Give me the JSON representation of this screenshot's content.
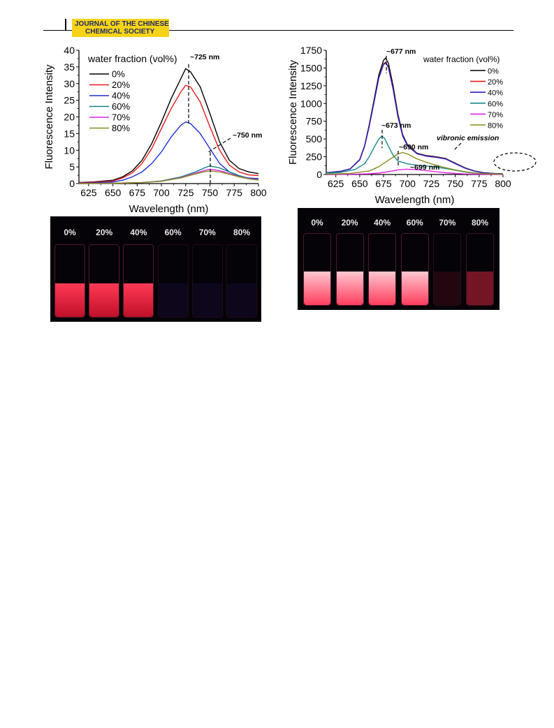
{
  "header": {
    "journal_line1": "JOURNAL OF THE CHINESE",
    "journal_line2": "CHEMICAL SOCIETY"
  },
  "chart_data": [
    {
      "type": "line",
      "xlabel": "Wavelength (nm)",
      "ylabel": "Fluorescence Intensity",
      "xlim": [
        615,
        800
      ],
      "ylim": [
        0,
        40
      ],
      "xticks": [
        625,
        650,
        675,
        700,
        725,
        750,
        775,
        800
      ],
      "yticks": [
        0,
        5,
        10,
        15,
        20,
        25,
        30,
        35,
        40
      ],
      "legend_title": "water fraction (vol%)",
      "legend_position": "top-left",
      "grid": false,
      "series": [
        {
          "name": "0%",
          "color": "#000000",
          "x": [
            615,
            630,
            650,
            660,
            670,
            680,
            690,
            700,
            710,
            720,
            725,
            730,
            740,
            750,
            760,
            770,
            780,
            790,
            800
          ],
          "y": [
            0.3,
            0.5,
            1.0,
            2.0,
            3.8,
            7.0,
            12.0,
            18.5,
            25.5,
            31.5,
            34.5,
            33.5,
            29.0,
            21.0,
            12.5,
            7.0,
            4.5,
            3.5,
            3.0
          ]
        },
        {
          "name": "20%",
          "color": "#e8191b",
          "x": [
            615,
            630,
            650,
            660,
            670,
            680,
            690,
            700,
            710,
            720,
            725,
            730,
            740,
            750,
            760,
            770,
            780,
            790,
            800
          ],
          "y": [
            0.2,
            0.4,
            0.8,
            1.7,
            3.2,
            6.0,
            10.5,
            16.5,
            22.5,
            27.5,
            29.5,
            29.0,
            24.5,
            17.0,
            10.0,
            5.5,
            3.5,
            2.6,
            2.4
          ]
        },
        {
          "name": "40%",
          "color": "#1d2fd6",
          "x": [
            615,
            630,
            650,
            660,
            670,
            680,
            690,
            700,
            710,
            720,
            725,
            730,
            740,
            750,
            760,
            770,
            780,
            790,
            800
          ],
          "y": [
            0.1,
            0.2,
            0.5,
            1.0,
            2.0,
            3.5,
            6.0,
            9.5,
            14.0,
            17.5,
            18.5,
            18.0,
            15.0,
            10.5,
            6.0,
            3.5,
            2.2,
            1.7,
            1.5
          ]
        },
        {
          "name": "60%",
          "color": "#138185",
          "x": [
            615,
            650,
            680,
            700,
            720,
            735,
            745,
            750,
            760,
            770,
            780,
            790,
            800
          ],
          "y": [
            0,
            0.1,
            0.3,
            0.8,
            2.0,
            3.5,
            4.8,
            5.3,
            4.7,
            3.5,
            2.4,
            1.6,
            1.2
          ]
        },
        {
          "name": "70%",
          "color": "#e323e8",
          "x": [
            615,
            650,
            680,
            700,
            720,
            735,
            745,
            750,
            760,
            770,
            780,
            790,
            800
          ],
          "y": [
            0,
            0.1,
            0.3,
            0.7,
            1.8,
            3.1,
            4.0,
            4.3,
            3.9,
            3.0,
            2.1,
            1.5,
            1.1
          ]
        },
        {
          "name": "80%",
          "color": "#8a8a1c",
          "x": [
            615,
            650,
            680,
            700,
            720,
            735,
            745,
            750,
            760,
            770,
            780,
            790,
            800
          ],
          "y": [
            0,
            0.1,
            0.3,
            0.7,
            1.7,
            2.9,
            3.6,
            3.8,
            3.5,
            2.8,
            2.0,
            1.4,
            1.0
          ]
        }
      ],
      "annotations": [
        {
          "text": "~725 nm",
          "x": 725,
          "y": 37
        },
        {
          "text": "~750 nm",
          "x": 762,
          "y": 14.5
        }
      ]
    },
    {
      "type": "line",
      "xlabel": "Wavelength (nm)",
      "ylabel": "Fluorescence Intensity",
      "xlim": [
        615,
        800
      ],
      "ylim": [
        0,
        1750
      ],
      "xticks": [
        625,
        650,
        675,
        700,
        725,
        750,
        775,
        800
      ],
      "yticks": [
        0,
        250,
        500,
        750,
        1000,
        1250,
        1500,
        1750
      ],
      "legend_title": "water fraction (vol%)",
      "legend_position": "top-right",
      "grid": false,
      "series": [
        {
          "name": "0%",
          "color": "#000000",
          "x": [
            615,
            630,
            640,
            650,
            655,
            660,
            665,
            670,
            675,
            677,
            680,
            685,
            690,
            695,
            700,
            710,
            720,
            730,
            740,
            750,
            760,
            770,
            780,
            790,
            800
          ],
          "y": [
            25,
            45,
            80,
            210,
            400,
            700,
            1050,
            1400,
            1610,
            1640,
            1570,
            1250,
            850,
            560,
            420,
            300,
            265,
            250,
            225,
            160,
            95,
            50,
            25,
            15,
            10
          ]
        },
        {
          "name": "20%",
          "color": "#e8191b",
          "x": [
            615,
            630,
            640,
            650,
            655,
            660,
            665,
            670,
            675,
            677,
            680,
            685,
            690,
            695,
            700,
            710,
            720,
            730,
            740,
            750,
            760,
            770,
            780,
            790,
            800
          ],
          "y": [
            25,
            44,
            78,
            205,
            390,
            680,
            1020,
            1360,
            1560,
            1580,
            1520,
            1210,
            820,
            545,
            410,
            295,
            260,
            245,
            220,
            155,
            92,
            48,
            24,
            14,
            9
          ]
        },
        {
          "name": "40%",
          "color": "#2a1fbf",
          "x": [
            615,
            630,
            640,
            650,
            655,
            660,
            665,
            670,
            675,
            677,
            680,
            685,
            690,
            695,
            700,
            710,
            720,
            730,
            740,
            750,
            760,
            770,
            780,
            790,
            800
          ],
          "y": [
            25,
            44,
            78,
            205,
            390,
            680,
            1020,
            1360,
            1550,
            1570,
            1510,
            1200,
            815,
            540,
            405,
            292,
            258,
            242,
            218,
            152,
            90,
            47,
            24,
            14,
            9
          ]
        },
        {
          "name": "60%",
          "color": "#168a8c",
          "x": [
            615,
            630,
            645,
            655,
            660,
            665,
            670,
            673,
            676,
            680,
            685,
            690,
            700,
            710,
            720,
            730,
            740,
            750,
            760,
            770,
            780,
            800
          ],
          "y": [
            20,
            30,
            70,
            150,
            250,
            380,
            500,
            540,
            510,
            400,
            270,
            190,
            150,
            130,
            120,
            105,
            85,
            60,
            35,
            20,
            12,
            5
          ]
        },
        {
          "name": "70%",
          "color": "#e020e0",
          "x": [
            615,
            640,
            660,
            670,
            680,
            690,
            699,
            710,
            720,
            730,
            740,
            750,
            760,
            780,
            800
          ],
          "y": [
            0,
            3,
            10,
            20,
            40,
            65,
            75,
            68,
            55,
            38,
            25,
            15,
            8,
            3,
            1
          ]
        },
        {
          "name": "80%",
          "color": "#8a8a1c",
          "x": [
            615,
            640,
            660,
            670,
            680,
            690,
            695,
            700,
            710,
            720,
            730,
            740,
            750,
            760,
            770,
            780,
            800
          ],
          "y": [
            5,
            15,
            50,
            110,
            200,
            290,
            310,
            290,
            220,
            170,
            130,
            95,
            65,
            40,
            22,
            12,
            4
          ]
        }
      ],
      "annotations": [
        {
          "text": "~677 nm",
          "x": 677,
          "y": 1700
        },
        {
          "text": "~673 nm",
          "x": 673,
          "y": 700
        },
        {
          "text": "~690 nm",
          "x": 690,
          "y": 470
        },
        {
          "text": "~699 nm",
          "x": 699,
          "y": 140
        },
        {
          "text": "vibronic emission",
          "x": 735,
          "y": 550
        }
      ]
    }
  ],
  "photos": [
    {
      "labels": [
        "0%",
        "20%",
        "40%",
        "60%",
        "70%",
        "80%"
      ],
      "glow": [
        1,
        1,
        1,
        0,
        0,
        0
      ]
    },
    {
      "labels": [
        "0%",
        "20%",
        "40%",
        "60%",
        "70%",
        "80%"
      ],
      "glow": [
        1,
        1,
        1,
        1,
        0.15,
        0.55
      ]
    }
  ]
}
